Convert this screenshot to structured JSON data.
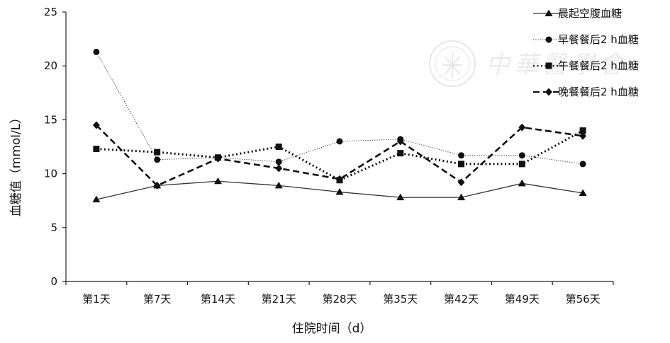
{
  "chart_data": {
    "type": "line",
    "xlabel": "住院时间（d）",
    "ylabel": "血糖值（mmol/L）",
    "ylim": [
      0,
      25
    ],
    "yticks": [
      "0",
      "5",
      "10",
      "15",
      "20",
      "25"
    ],
    "categories": [
      "第1天",
      "第7天",
      "第14天",
      "第21天",
      "第28天",
      "第35天",
      "第42天",
      "第49天",
      "第56天"
    ],
    "grid": false,
    "legend_position": "top-right",
    "series": [
      {
        "name": "晨起空腹血糖",
        "marker": "triangle",
        "line_style": "solid",
        "values": [
          7.6,
          8.9,
          9.3,
          8.9,
          8.3,
          7.8,
          7.8,
          9.1,
          8.2
        ]
      },
      {
        "name": "早餐餐后2 h血糖",
        "marker": "circle",
        "line_style": "dotted",
        "values": [
          21.3,
          11.3,
          11.5,
          11.1,
          13.0,
          13.2,
          11.7,
          11.7,
          10.9
        ]
      },
      {
        "name": "午餐餐后2 h血糖",
        "marker": "square",
        "line_style": "dotted-bold",
        "values": [
          12.3,
          12.0,
          11.5,
          12.5,
          9.4,
          11.9,
          10.9,
          10.9,
          14.0
        ]
      },
      {
        "name": "晚餐餐后2 h血糖",
        "marker": "diamond",
        "line_style": "dashed",
        "values": [
          14.5,
          8.9,
          11.4,
          10.5,
          9.5,
          13.0,
          9.2,
          14.3,
          13.5
        ]
      }
    ]
  },
  "watermark": {
    "text": "中華醫學會",
    "icon": "society-seal"
  }
}
